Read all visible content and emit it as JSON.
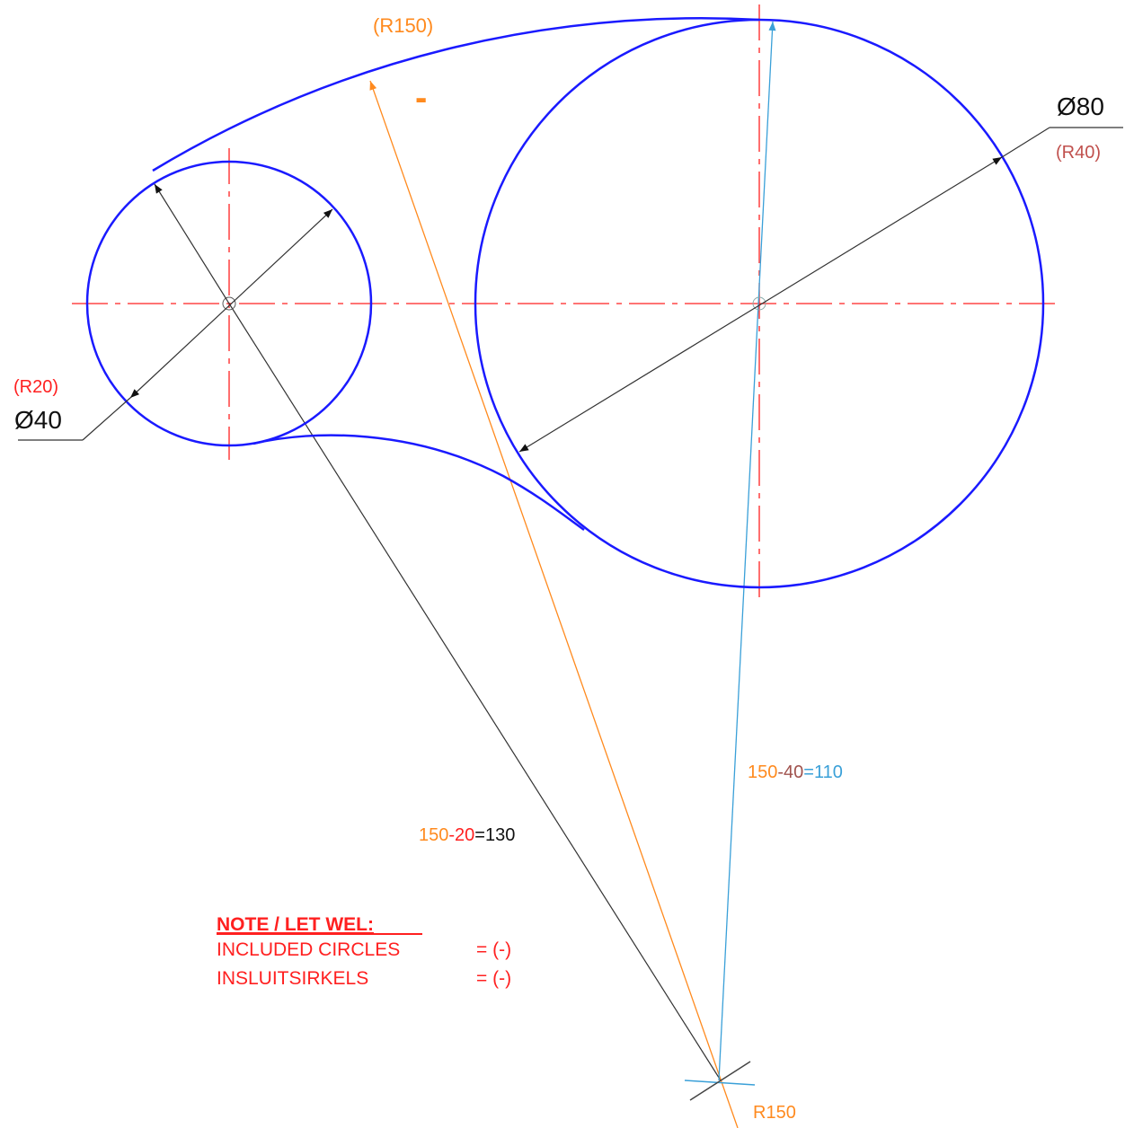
{
  "labels": {
    "top_radius": "(R150)",
    "minus": "-",
    "large_diameter": "Ø80",
    "large_radius": "(R40)",
    "small_radius": "(R20)",
    "small_diameter": "Ø40",
    "arc_radius": "R150"
  },
  "equations": [
    {
      "parts": [
        "150",
        "-40",
        "=110"
      ]
    },
    {
      "parts": [
        "150",
        "-20",
        "=130"
      ]
    }
  ],
  "note": {
    "title": "NOTE / LET WEL:",
    "lines": [
      [
        "INCLUDED CIRCLES",
        "= (-)"
      ],
      [
        "INSLUITSIRKELS",
        "= (-)"
      ]
    ]
  }
}
